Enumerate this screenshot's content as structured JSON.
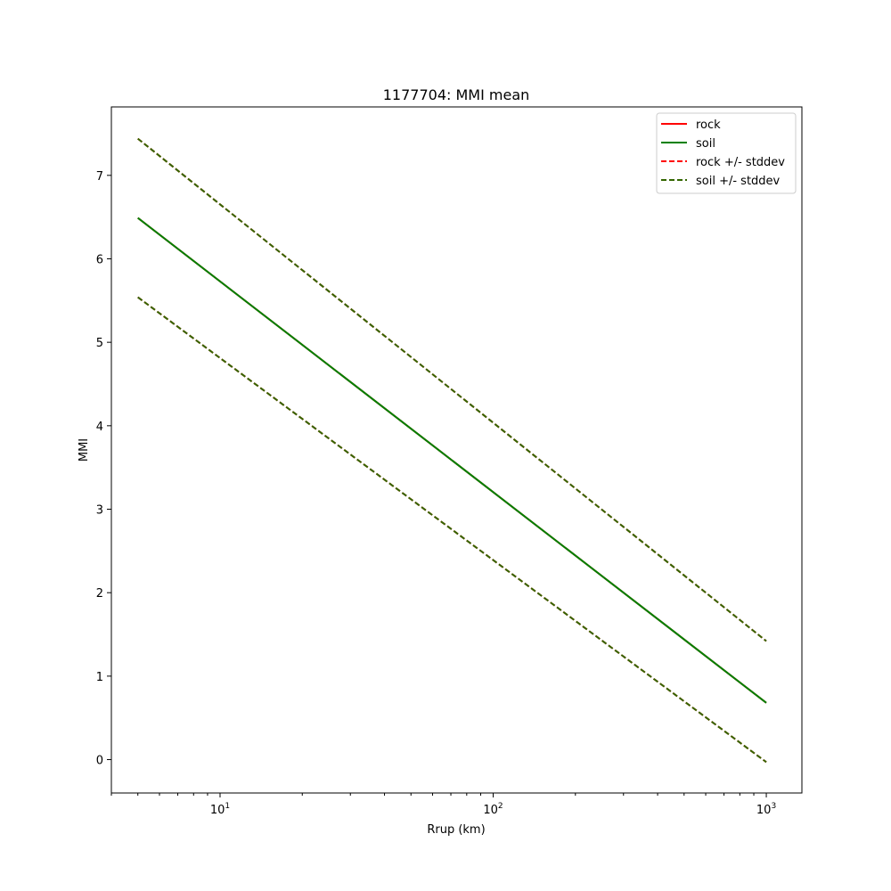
{
  "chart_data": {
    "type": "line",
    "title": "1177704: MMI mean",
    "xlabel": "Rrup (km)",
    "ylabel": "MMI",
    "xscale": "log",
    "xlim": [
      4,
      1350
    ],
    "ylim": [
      -0.4,
      7.82
    ],
    "x_ticks": [
      {
        "value": 10,
        "base": "10",
        "exp": "1"
      },
      {
        "value": 100,
        "base": "10",
        "exp": "2"
      },
      {
        "value": 1000,
        "base": "10",
        "exp": "3"
      }
    ],
    "y_ticks": [
      0,
      1,
      2,
      3,
      4,
      5,
      6,
      7
    ],
    "legend_position": "top-right",
    "grid": false,
    "series": [
      {
        "name": "rock",
        "color": "#ff0000",
        "dash": "solid",
        "x": [
          5,
          1000
        ],
        "y": [
          6.49,
          0.68
        ]
      },
      {
        "name": "soil",
        "color": "#008000",
        "dash": "solid",
        "x": [
          5,
          1000
        ],
        "y": [
          6.49,
          0.68
        ]
      },
      {
        "name": "rock +/- stddev",
        "color": "#ff0000",
        "dash": "dashed",
        "legend": true,
        "x": [
          5,
          1000
        ],
        "y": [
          7.44,
          1.42
        ]
      },
      {
        "name": "rock +/- stddev",
        "color": "#ff0000",
        "dash": "dashed",
        "legend": false,
        "x": [
          5,
          1000
        ],
        "y": [
          5.54,
          -0.03
        ]
      },
      {
        "name": "soil +/- stddev",
        "color": "#336600",
        "dash": "dashed",
        "legend": true,
        "x": [
          5,
          1000
        ],
        "y": [
          7.44,
          1.42
        ]
      },
      {
        "name": "soil +/- stddev",
        "color": "#336600",
        "dash": "dashed",
        "legend": false,
        "x": [
          5,
          1000
        ],
        "y": [
          5.54,
          -0.03
        ]
      }
    ]
  }
}
